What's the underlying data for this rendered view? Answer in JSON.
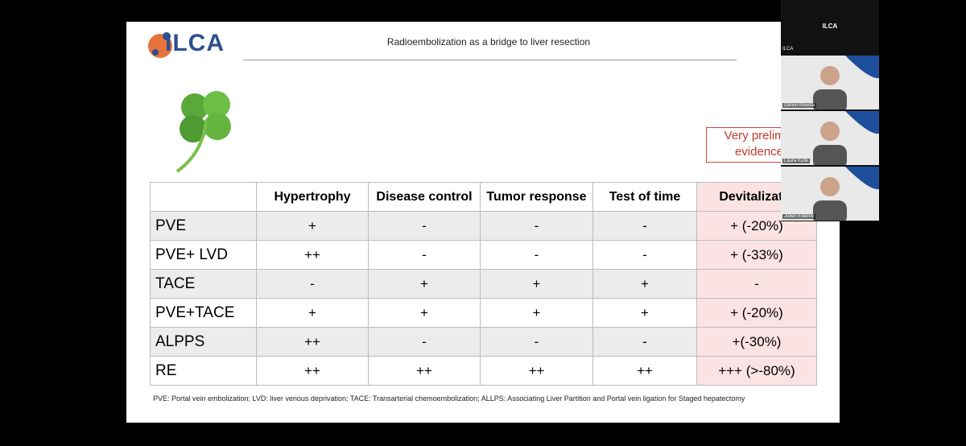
{
  "slide": {
    "logo": "ILCA",
    "title": "Radioembolization as a bridge to liver resection",
    "note": [
      "Very prelimin",
      "evidence"
    ],
    "table": {
      "columns": [
        "",
        "Hypertrophy",
        "Disease control",
        "Tumor response",
        "Test of time",
        "Devitalizatio"
      ],
      "rows": [
        [
          "PVE",
          "+",
          "-",
          "-",
          "-",
          "+ (-20%)"
        ],
        [
          "PVE+ LVD",
          "++",
          "-",
          "-",
          "-",
          "+ (-33%)"
        ],
        [
          "TACE",
          "-",
          "+",
          "+",
          "+",
          "-"
        ],
        [
          "PVE+TACE",
          "+",
          "+",
          "+",
          "+",
          "+ (-20%)"
        ],
        [
          "ALPPS",
          "++",
          "-",
          "-",
          "-",
          "+(-30%)"
        ],
        [
          "RE",
          "++",
          "++",
          "++",
          "++",
          "+++ (>-80%)"
        ]
      ]
    },
    "footnote": "PVE: Portal vein embolization; LVD: liver venous deprivation; TACE: Transarterial chemoembolization; ALLPS: Associating Liver Partition and Portal vein ligation for Staged hepatectomy"
  },
  "call": {
    "host": "ILCA",
    "host_label": "ILCA",
    "participants": [
      "Daniel Aliseda",
      "Laura Kulik",
      "Julien Edeline"
    ]
  }
}
